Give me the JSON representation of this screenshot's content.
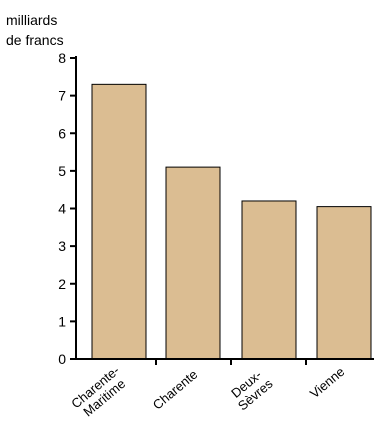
{
  "chart_data": {
    "type": "bar",
    "unit_label": [
      "milliards",
      "de francs"
    ],
    "categories": [
      [
        "Charente-",
        "Maritime"
      ],
      [
        "Charente"
      ],
      [
        "Deux-",
        "Sèvres"
      ],
      [
        "Vienne"
      ]
    ],
    "values": [
      7.3,
      5.1,
      4.2,
      4.05
    ],
    "ylim": [
      0,
      8
    ],
    "yticks": [
      "0",
      "1",
      "2",
      "3",
      "4",
      "5",
      "6",
      "7",
      "8"
    ],
    "bar_color": "#dbbd92",
    "grid": false
  }
}
